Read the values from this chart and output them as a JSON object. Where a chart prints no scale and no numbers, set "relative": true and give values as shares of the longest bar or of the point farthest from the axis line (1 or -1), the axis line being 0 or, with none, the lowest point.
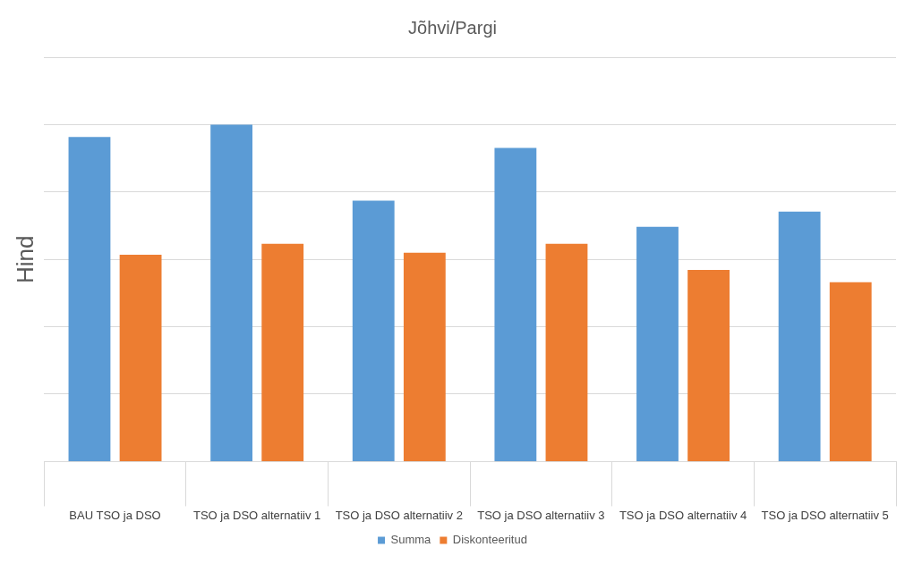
{
  "chart_data": {
    "type": "bar",
    "title": "Jõhvi/Pargi",
    "ylabel": "Hind",
    "relative": true,
    "grid": "y",
    "legend": "bottom",
    "categories": [
      "BAU TSO ja DSO",
      "TSO ja DSO alternatiiv 1",
      "TSO ja DSO alternatiiv 2",
      "TSO ja DSO alternatiiv 3",
      "TSO ja DSO alternatiiv 4",
      "TSO ja DSO alternatiiv 5"
    ],
    "series": [
      {
        "name": "Summa",
        "color": "#5b9bd5",
        "values": [
          0.963,
          1,
          0.774,
          0.931,
          0.697,
          0.742
        ]
      },
      {
        "name": "Diskonteeritud",
        "color": "#ed7d31",
        "values": [
          0.614,
          0.646,
          0.62,
          0.646,
          0.569,
          0.532
        ]
      }
    ]
  }
}
